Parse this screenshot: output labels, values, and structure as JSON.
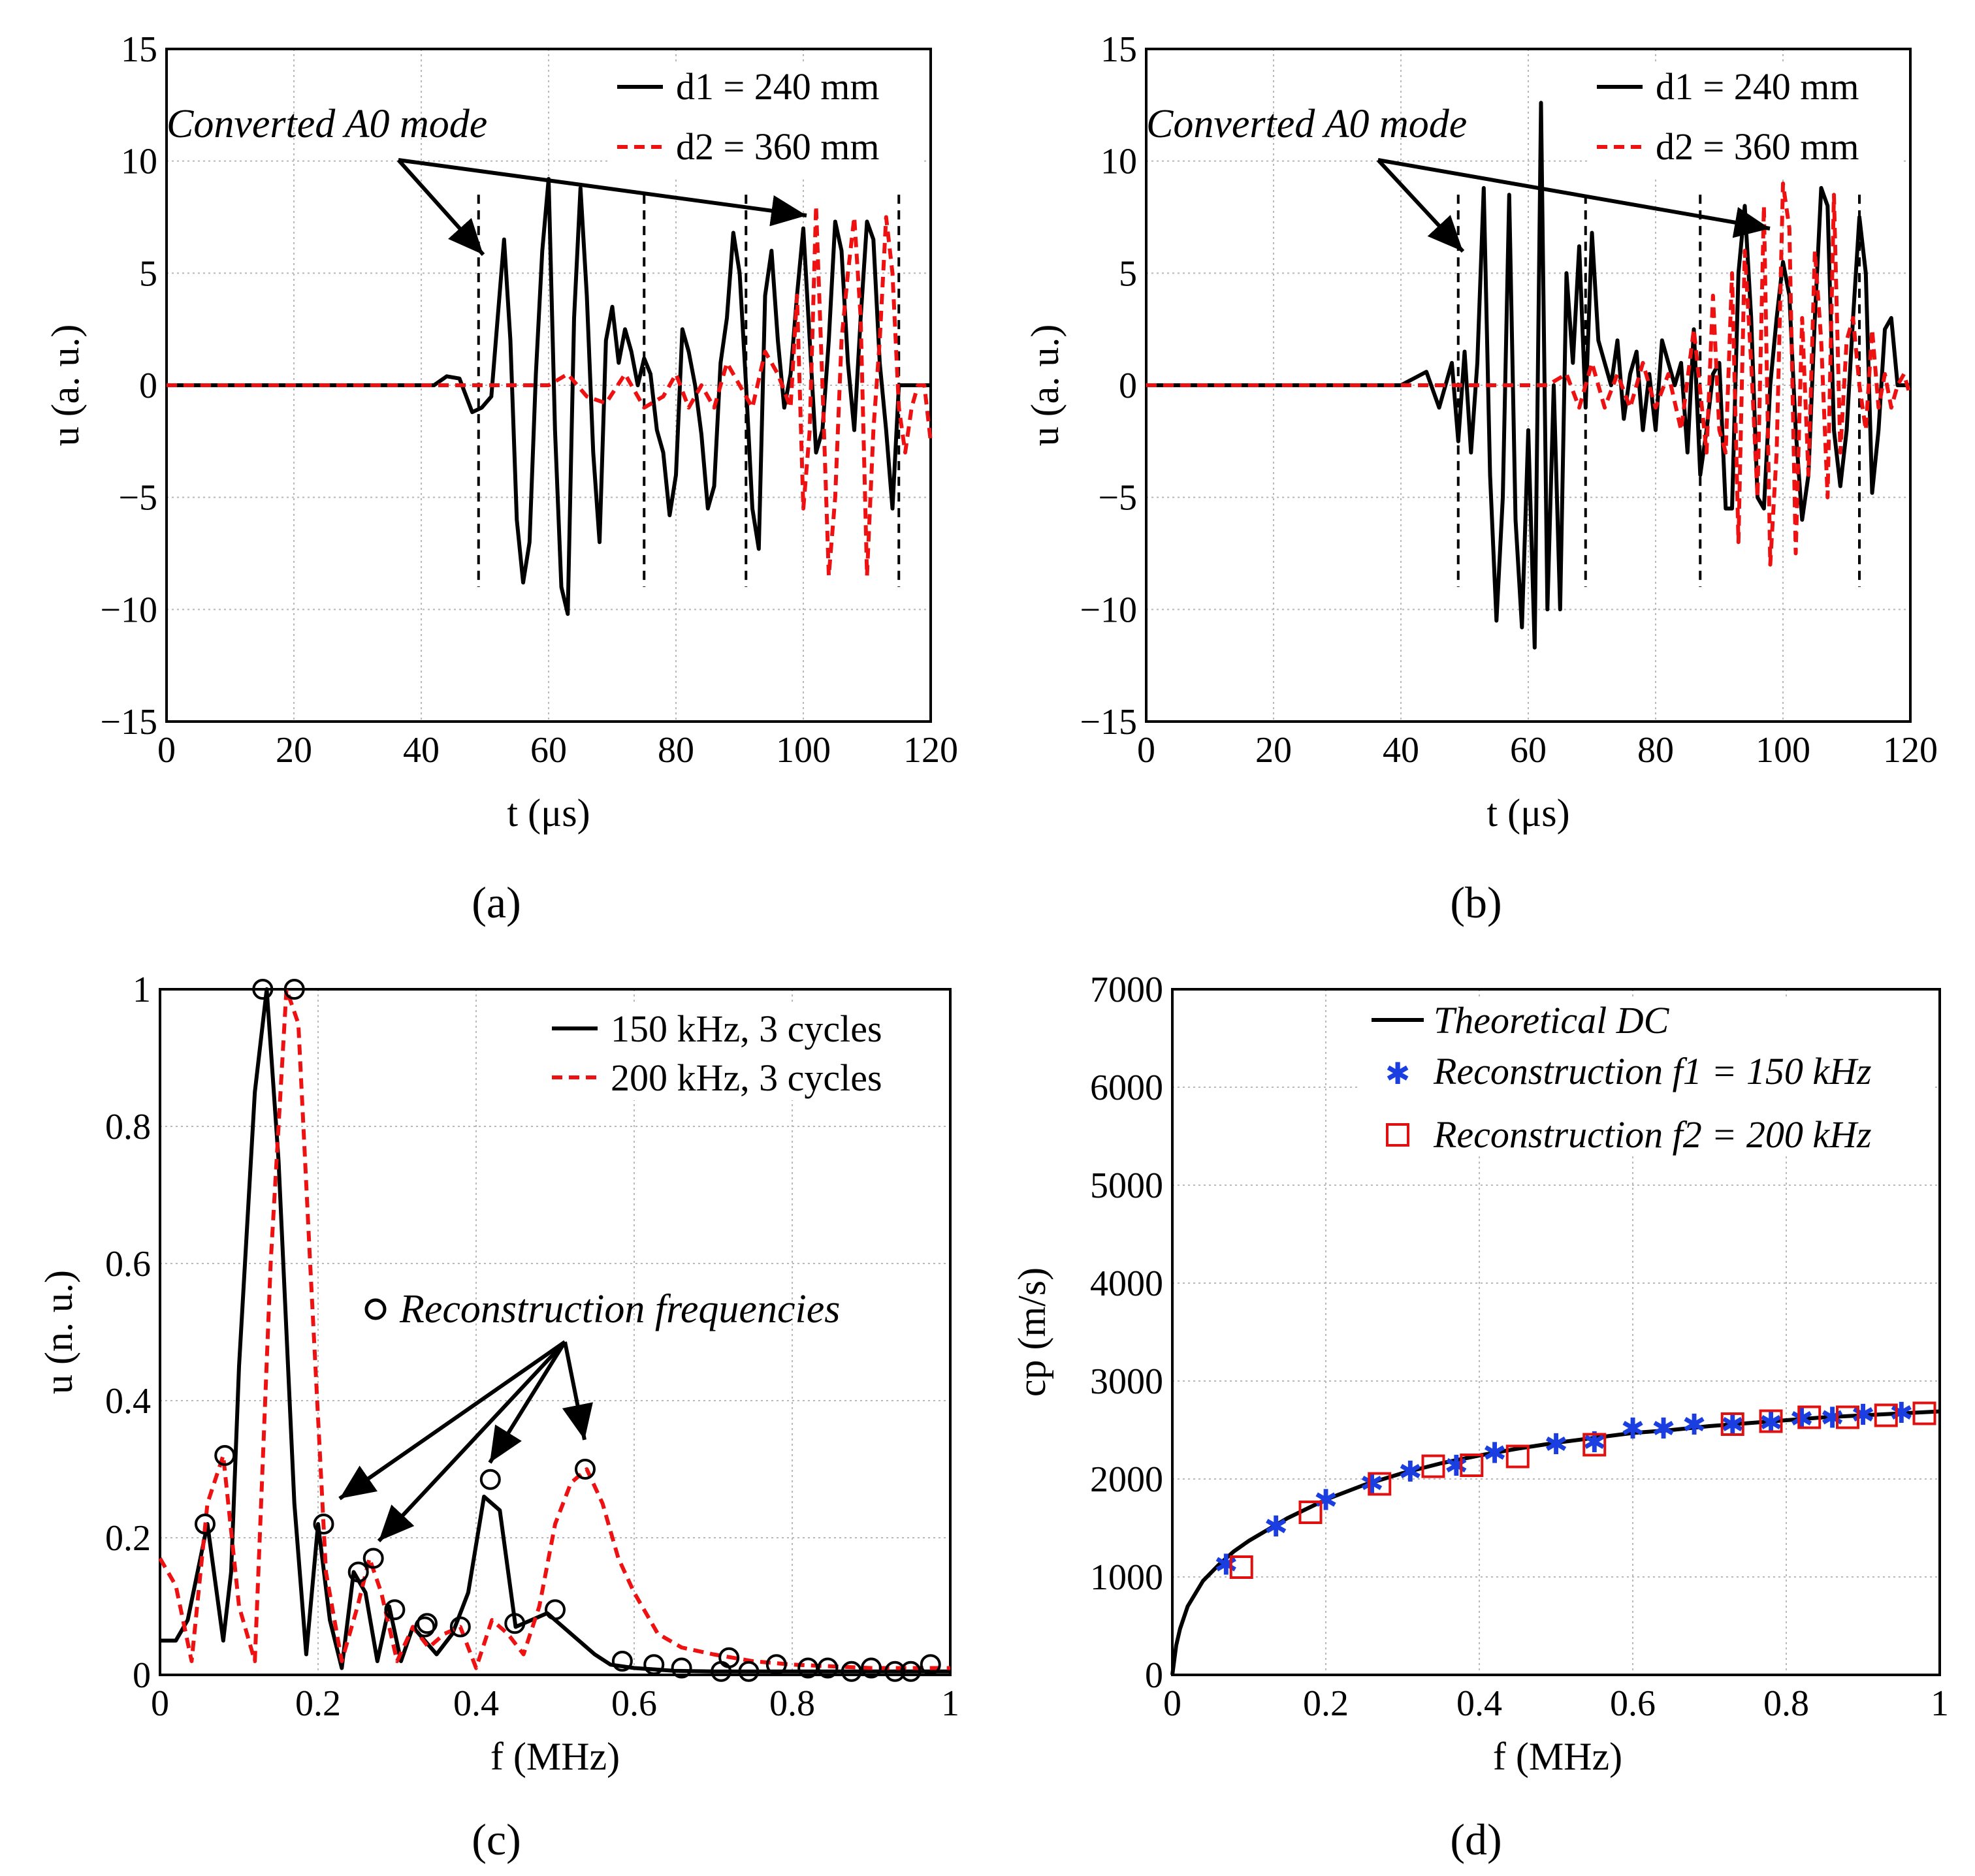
{
  "figure": {
    "captions": [
      "(a)",
      "(b)",
      "(c)",
      "(d)"
    ]
  },
  "colors": {
    "black": "#000000",
    "red": "#ee1111",
    "blue": "#1a3ee0",
    "square": "#e01010"
  },
  "chart_data": [
    {
      "type": "line",
      "panel": "a",
      "title": "",
      "xlabel": "t (μs)",
      "ylabel": "u (a. u.)",
      "xlim": [
        0,
        120
      ],
      "ylim": [
        -15,
        15
      ],
      "xticks": [
        "0",
        "20",
        "40",
        "60",
        "80",
        "100",
        "120"
      ],
      "yticks": [
        "15",
        "10",
        "5",
        "0",
        "−5",
        "−10",
        "−15"
      ],
      "legend": [
        "d1 = 240 mm",
        "d2 = 360 mm"
      ],
      "annotation": "Converted A0 mode",
      "markers_at": [
        49,
        75,
        91,
        115
      ],
      "series": [
        {
          "name": "d1 = 240 mm",
          "style": "solid-black",
          "x": [
            0,
            42,
            44,
            46,
            48,
            49.5,
            51,
            52,
            53,
            54,
            55,
            56,
            57,
            58,
            59,
            60,
            61,
            62,
            63,
            64,
            65,
            66,
            67,
            68,
            69,
            70,
            71,
            72,
            73,
            74,
            75,
            76,
            77,
            78,
            79,
            80,
            81,
            82,
            83,
            84,
            85,
            86,
            87,
            88,
            89,
            90,
            91,
            92,
            93,
            94,
            95,
            96,
            97,
            98,
            99,
            100,
            101,
            102,
            103,
            104,
            105,
            106,
            107,
            108,
            109,
            110,
            111,
            112,
            113,
            114,
            115,
            116,
            117,
            118,
            119,
            120
          ],
          "y": [
            0,
            0,
            0.4,
            0.3,
            -1.2,
            -1,
            -0.5,
            3,
            6.5,
            2,
            -6,
            -8.8,
            -7,
            0.5,
            6,
            9.2,
            -2,
            -9,
            -10.2,
            3,
            8.8,
            4,
            -3,
            -7,
            2,
            3.5,
            1,
            2.5,
            1.5,
            0,
            1.2,
            0.5,
            -2,
            -3,
            -5.8,
            -4,
            2.5,
            1.5,
            0,
            -2.2,
            -5.5,
            -4.5,
            1,
            3,
            6.8,
            5,
            0,
            -5.5,
            -7.3,
            4,
            6,
            2,
            -1,
            0.5,
            4,
            7,
            2,
            -3,
            -2,
            2,
            7.3,
            6,
            1,
            -2,
            3,
            7.3,
            6.5,
            1,
            -2,
            -5.5,
            0,
            0,
            0,
            0,
            0,
            0
          ]
        },
        {
          "name": "d2 = 360 mm",
          "style": "dashed-red",
          "x": [
            0,
            60,
            63,
            66,
            69,
            72,
            75,
            78,
            80,
            82,
            84,
            86,
            88,
            90,
            92,
            94,
            96,
            98,
            99,
            100,
            101,
            102,
            103,
            104,
            105,
            106,
            107,
            108,
            109,
            110,
            111,
            112,
            113,
            114,
            115,
            116,
            117,
            118,
            119,
            120
          ],
          "y": [
            0,
            0,
            0.5,
            -0.5,
            -0.8,
            0.5,
            -1,
            -0.5,
            0.5,
            -1,
            0,
            -1,
            1,
            0,
            -1,
            1.5,
            0.5,
            -1,
            4,
            -5.5,
            -2,
            8,
            0,
            -8.5,
            -5,
            2,
            5,
            7.5,
            3,
            -8.5,
            -2,
            2,
            7.5,
            5,
            -1,
            -3,
            -1,
            0,
            0,
            -2.5
          ]
        }
      ]
    },
    {
      "type": "line",
      "panel": "b",
      "title": "",
      "xlabel": "t (μs)",
      "ylabel": "u (a. u.)",
      "xlim": [
        0,
        120
      ],
      "ylim": [
        -15,
        15
      ],
      "xticks": [
        "0",
        "20",
        "40",
        "60",
        "80",
        "100",
        "120"
      ],
      "yticks": [
        "15",
        "10",
        "5",
        "0",
        "−5",
        "−10",
        "−15"
      ],
      "legend": [
        "d1 = 240 mm",
        "d2 = 360 mm"
      ],
      "annotation": "Converted A0 mode",
      "markers_at": [
        49,
        69,
        87,
        112
      ],
      "series": [
        {
          "name": "d1 = 240 mm",
          "style": "solid-black",
          "x": [
            0,
            40,
            44,
            46,
            48,
            49,
            50,
            51,
            52,
            53,
            54,
            55,
            56,
            57,
            58,
            59,
            60,
            61,
            62,
            63,
            64,
            65,
            66,
            67,
            68,
            69,
            70,
            71,
            72,
            73,
            74,
            75,
            76,
            77,
            78,
            79,
            80,
            81,
            82,
            83,
            84,
            85,
            86,
            87,
            88,
            89,
            90,
            91,
            92,
            93,
            94,
            95,
            96,
            97,
            98,
            99,
            100,
            101,
            102,
            103,
            104,
            105,
            106,
            107,
            108,
            109,
            110,
            111,
            112,
            113,
            114,
            115,
            116,
            117,
            118,
            119,
            120
          ],
          "y": [
            0,
            0,
            0.6,
            -1,
            1,
            -2.5,
            1.5,
            -3,
            1,
            8.8,
            -4,
            -10.5,
            -5,
            8.5,
            -6,
            -10.8,
            -2,
            -11.7,
            12.6,
            -10,
            0,
            -10,
            5,
            1,
            6.2,
            -1,
            6.8,
            2,
            1,
            0,
            2,
            -1.5,
            0.5,
            1.5,
            -2,
            0.5,
            -2,
            2,
            1,
            0,
            1,
            -3,
            2.5,
            -4,
            -2,
            0.5,
            1,
            -5.5,
            -5.5,
            5,
            8,
            3,
            -5,
            -5.5,
            0,
            3,
            5.5,
            4,
            -2,
            -6,
            -4,
            3,
            8.8,
            8,
            -2,
            -4.5,
            -2,
            3,
            7.5,
            5,
            -4.8,
            -2,
            2.5,
            3,
            0,
            0,
            0
          ]
        },
        {
          "name": "d2 = 360 mm",
          "style": "dashed-red",
          "x": [
            0,
            63,
            66,
            68,
            70,
            72,
            74,
            76,
            78,
            80,
            82,
            84,
            86,
            88,
            89,
            90,
            91,
            92,
            93,
            94,
            95,
            96,
            97,
            98,
            99,
            100,
            101,
            102,
            103,
            104,
            105,
            106,
            107,
            108,
            109,
            110,
            111,
            112,
            113,
            114,
            115,
            116,
            117,
            118,
            119,
            120
          ],
          "y": [
            0,
            0,
            0.5,
            -1,
            1,
            -1,
            0.5,
            -1,
            1,
            -1,
            0.5,
            -2,
            2.5,
            -3,
            4,
            -2,
            -3,
            5,
            -7,
            6,
            1,
            -5,
            8,
            -8,
            -3,
            9,
            7,
            -7.5,
            3,
            -4,
            6,
            2,
            -5,
            8.5,
            -3,
            2,
            3,
            0,
            -2,
            2.5,
            -1,
            0.5,
            -1,
            0,
            0.5,
            -0.5
          ]
        }
      ]
    },
    {
      "type": "line",
      "panel": "c",
      "title": "",
      "xlabel": "f (MHz)",
      "ylabel": "u (n. u.)",
      "xlim": [
        0,
        1
      ],
      "ylim": [
        0,
        1
      ],
      "xticks": [
        "0",
        "0.2",
        "0.4",
        "0.6",
        "0.8",
        "1"
      ],
      "yticks": [
        "1",
        "0.8",
        "0.6",
        "0.4",
        "0.2",
        "0"
      ],
      "legend": [
        "150 kHz, 3 cycles",
        "200 kHz, 3 cycles"
      ],
      "annotation": "Reconstruction frequencies",
      "series": [
        {
          "name": "150 kHz, 3 cycles",
          "style": "solid-black",
          "x": [
            0,
            0.02,
            0.035,
            0.06,
            0.08,
            0.09,
            0.1,
            0.12,
            0.135,
            0.15,
            0.17,
            0.185,
            0.2,
            0.215,
            0.23,
            0.245,
            0.26,
            0.275,
            0.29,
            0.305,
            0.32,
            0.335,
            0.35,
            0.37,
            0.39,
            0.41,
            0.43,
            0.45,
            0.47,
            0.49,
            0.51,
            0.53,
            0.55,
            0.57,
            0.6,
            0.65,
            0.7,
            0.8,
            0.9,
            1.0
          ],
          "y": [
            0.05,
            0.05,
            0.08,
            0.22,
            0.05,
            0.15,
            0.45,
            0.85,
            1.0,
            0.75,
            0.25,
            0.03,
            0.22,
            0.08,
            0.01,
            0.15,
            0.12,
            0.02,
            0.1,
            0.02,
            0.07,
            0.05,
            0.03,
            0.06,
            0.12,
            0.26,
            0.24,
            0.07,
            0.08,
            0.09,
            0.07,
            0.05,
            0.03,
            0.015,
            0.01,
            0.006,
            0.005,
            0.005,
            0.005,
            0.005
          ]
        },
        {
          "name": "200 kHz, 3 cycles",
          "style": "dashed-red",
          "x": [
            0,
            0.02,
            0.04,
            0.06,
            0.08,
            0.1,
            0.12,
            0.14,
            0.16,
            0.175,
            0.19,
            0.21,
            0.23,
            0.25,
            0.265,
            0.28,
            0.3,
            0.32,
            0.34,
            0.36,
            0.38,
            0.4,
            0.42,
            0.44,
            0.46,
            0.48,
            0.5,
            0.52,
            0.54,
            0.56,
            0.58,
            0.6,
            0.63,
            0.66,
            0.7,
            0.75,
            0.8,
            0.9,
            1.0
          ],
          "y": [
            0.17,
            0.13,
            0.02,
            0.25,
            0.32,
            0.1,
            0.02,
            0.6,
            1.0,
            0.95,
            0.6,
            0.15,
            0.02,
            0.1,
            0.17,
            0.12,
            0.02,
            0.07,
            0.04,
            0.06,
            0.07,
            0.01,
            0.08,
            0.06,
            0.03,
            0.1,
            0.22,
            0.28,
            0.3,
            0.25,
            0.17,
            0.12,
            0.06,
            0.04,
            0.03,
            0.02,
            0.015,
            0.01,
            0.01
          ]
        },
        {
          "name": "Reconstruction frequencies",
          "style": "circles",
          "x": [
            0.057,
            0.082,
            0.13,
            0.17,
            0.207,
            0.251,
            0.27,
            0.297,
            0.335,
            0.338,
            0.38,
            0.418,
            0.449,
            0.5,
            0.538,
            0.585,
            0.625,
            0.66,
            0.71,
            0.72,
            0.745,
            0.78,
            0.82,
            0.845,
            0.875,
            0.9,
            0.93,
            0.95,
            0.975
          ],
          "y": [
            0.22,
            0.32,
            1.0,
            1.0,
            0.22,
            0.15,
            0.17,
            0.095,
            0.07,
            0.075,
            0.07,
            0.285,
            0.075,
            0.095,
            0.3,
            0.02,
            0.015,
            0.01,
            0.005,
            0.025,
            0.005,
            0.015,
            0.01,
            0.01,
            0.005,
            0.01,
            0.005,
            0.005,
            0.015
          ]
        }
      ]
    },
    {
      "type": "line",
      "panel": "d",
      "title": "",
      "xlabel": "f (MHz)",
      "ylabel": "cp (m/s)",
      "xlim": [
        0,
        1
      ],
      "ylim": [
        0,
        7000
      ],
      "xticks": [
        "0",
        "0.2",
        "0.4",
        "0.6",
        "0.8",
        "1"
      ],
      "yticks": [
        "7000",
        "6000",
        "5000",
        "4000",
        "3000",
        "2000",
        "1000",
        "0"
      ],
      "legend": [
        "Theoretical DC",
        "Reconstruction f1 = 150 kHz",
        "Reconstruction f2 = 200 kHz"
      ],
      "series": [
        {
          "name": "Theoretical DC",
          "style": "solid-black",
          "x": [
            0,
            0.005,
            0.01,
            0.02,
            0.04,
            0.06,
            0.08,
            0.1,
            0.15,
            0.2,
            0.25,
            0.3,
            0.35,
            0.4,
            0.45,
            0.5,
            0.55,
            0.6,
            0.65,
            0.7,
            0.75,
            0.8,
            0.85,
            0.9,
            0.95,
            1.0
          ],
          "y": [
            0,
            300,
            470,
            700,
            960,
            1120,
            1260,
            1370,
            1600,
            1790,
            1940,
            2060,
            2160,
            2240,
            2310,
            2370,
            2420,
            2470,
            2500,
            2540,
            2570,
            2600,
            2630,
            2650,
            2670,
            2690
          ]
        },
        {
          "name": "Reconstruction f1 = 150 kHz",
          "style": "blue-star",
          "x": [
            0.07,
            0.135,
            0.2,
            0.26,
            0.31,
            0.37,
            0.42,
            0.5,
            0.55,
            0.6,
            0.64,
            0.68,
            0.73,
            0.78,
            0.82,
            0.86,
            0.9,
            0.95
          ],
          "y": [
            1130,
            1520,
            1790,
            1960,
            2080,
            2140,
            2270,
            2360,
            2380,
            2520,
            2520,
            2560,
            2560,
            2580,
            2620,
            2630,
            2660,
            2680
          ]
        },
        {
          "name": "Reconstruction f2 = 200 kHz",
          "style": "red-square",
          "x": [
            0.09,
            0.18,
            0.27,
            0.34,
            0.39,
            0.45,
            0.55,
            0.73,
            0.78,
            0.83,
            0.88,
            0.93,
            0.98
          ],
          "y": [
            1100,
            1660,
            1950,
            2130,
            2140,
            2230,
            2350,
            2560,
            2590,
            2630,
            2630,
            2650,
            2670
          ]
        }
      ]
    }
  ]
}
